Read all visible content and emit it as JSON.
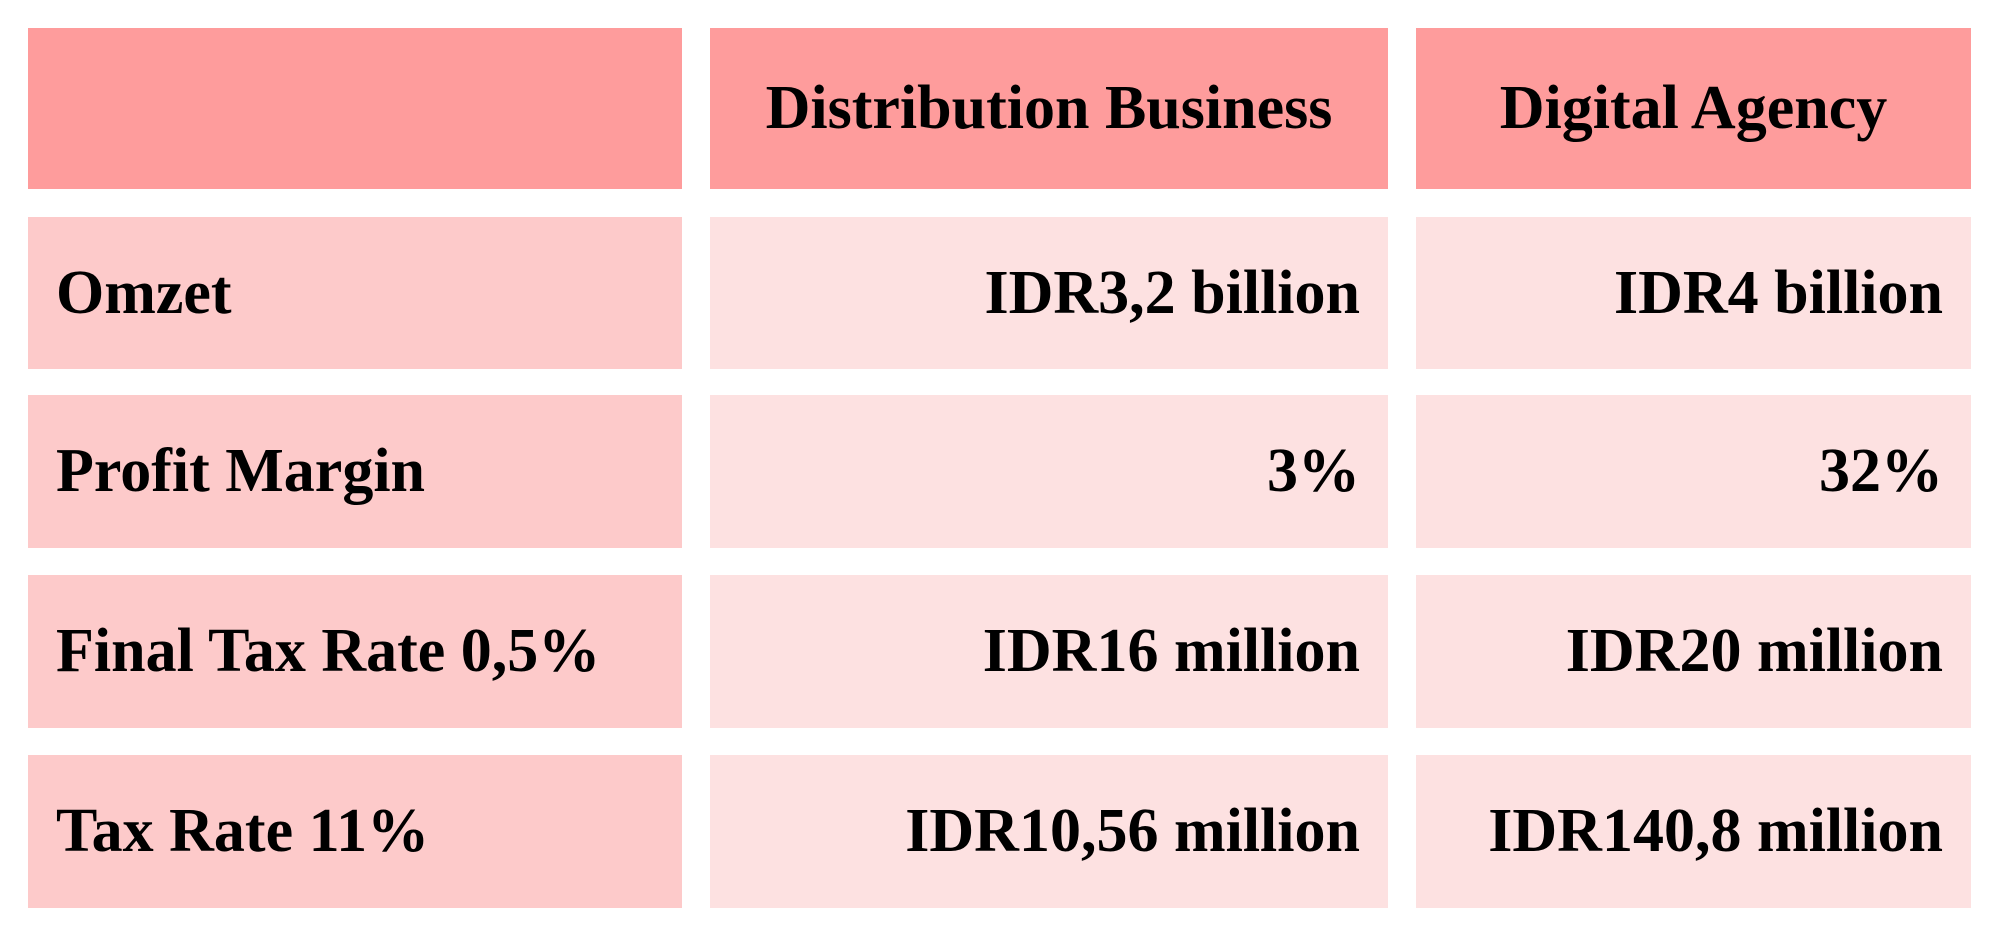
{
  "table": {
    "columns": [
      "Distribution Business",
      "Digital Agency"
    ],
    "rows": [
      {
        "label": "Omzet",
        "cells": [
          "IDR3,2 billion",
          "IDR4 billion"
        ]
      },
      {
        "label": "Profit Margin",
        "cells": [
          "3%",
          "32%"
        ]
      },
      {
        "label": "Final Tax Rate 0,5%",
        "cells": [
          "IDR16 million",
          "IDR20 million"
        ]
      },
      {
        "label": "Tax Rate 11%",
        "cells": [
          "IDR10,56 million",
          "IDR140,8 million"
        ]
      }
    ]
  }
}
